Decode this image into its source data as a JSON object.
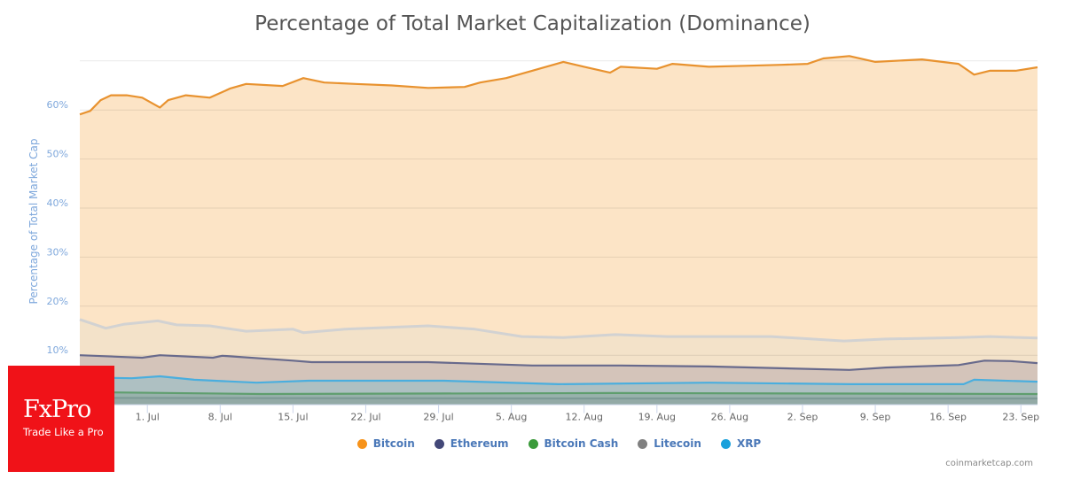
{
  "chart_data": {
    "type": "area",
    "title": "Percentage of Total Market Capitalization (Dominance)",
    "ylabel": "Percentage of Total Market Cap",
    "xlabel": "",
    "x_unit": "days since 25 Jun",
    "xlim": [
      -0.5,
      91.6
    ],
    "ylim": [
      0,
      71.5
    ],
    "gridlines": [
      10,
      20,
      30,
      40,
      50,
      60,
      70
    ],
    "y_tick_labels": [
      {
        "v": 10,
        "t": "10%"
      },
      {
        "v": 20,
        "t": "20%"
      },
      {
        "v": 30,
        "t": "30%"
      },
      {
        "v": 40,
        "t": "40%"
      },
      {
        "v": 50,
        "t": "50%"
      },
      {
        "v": 60,
        "t": "60%"
      }
    ],
    "x_ticks": [
      {
        "d": 6,
        "t": "1. Jul"
      },
      {
        "d": 13,
        "t": "8. Jul"
      },
      {
        "d": 20,
        "t": "15. Jul"
      },
      {
        "d": 27,
        "t": "22. Jul"
      },
      {
        "d": 34,
        "t": "29. Jul"
      },
      {
        "d": 41,
        "t": "5. Aug"
      },
      {
        "d": 48,
        "t": "12. Aug"
      },
      {
        "d": 55,
        "t": "19. Aug"
      },
      {
        "d": 62,
        "t": "26. Aug"
      },
      {
        "d": 69,
        "t": "2. Sep"
      },
      {
        "d": 76,
        "t": "9. Sep"
      },
      {
        "d": 83,
        "t": "16. Sep"
      },
      {
        "d": 90,
        "t": "23. Sep"
      }
    ],
    "series": [
      {
        "name": "Bitcoin",
        "color": "#f7931a",
        "line": "#e8922f",
        "fill": "#fce4c6",
        "points": [
          [
            -0.5,
            59.1
          ],
          [
            0.5,
            59.8
          ],
          [
            1.5,
            62
          ],
          [
            2.5,
            63
          ],
          [
            4,
            63
          ],
          [
            5.5,
            62.5
          ],
          [
            7.2,
            60.5
          ],
          [
            8,
            62
          ],
          [
            9.7,
            63
          ],
          [
            12,
            62.5
          ],
          [
            14,
            64.4
          ],
          [
            15.5,
            65.3
          ],
          [
            19,
            64.9
          ],
          [
            21,
            66.5
          ],
          [
            23,
            65.6
          ],
          [
            26,
            65.3
          ],
          [
            29.5,
            65
          ],
          [
            33,
            64.5
          ],
          [
            36.5,
            64.7
          ],
          [
            38,
            65.6
          ],
          [
            40.5,
            66.5
          ],
          [
            43,
            68
          ],
          [
            46,
            69.8
          ],
          [
            48,
            68.8
          ],
          [
            50.5,
            67.6
          ],
          [
            51.5,
            68.8
          ],
          [
            55,
            68.4
          ],
          [
            56.5,
            69.4
          ],
          [
            60,
            68.8
          ],
          [
            63.5,
            69
          ],
          [
            67,
            69.2
          ],
          [
            69.5,
            69.4
          ],
          [
            71,
            70.5
          ],
          [
            73.5,
            71
          ],
          [
            76,
            69.8
          ],
          [
            80.5,
            70.3
          ],
          [
            84,
            69.4
          ],
          [
            85.5,
            67.2
          ],
          [
            87,
            68
          ],
          [
            89.5,
            68
          ],
          [
            91.6,
            68.7
          ]
        ]
      },
      {
        "name": "",
        "color": "#d0d0d0",
        "line": "#d2d2d2",
        "fill": "#f3e2c9",
        "points": [
          [
            -0.5,
            17.3
          ],
          [
            2,
            15.5
          ],
          [
            3.7,
            16.3
          ],
          [
            7,
            17
          ],
          [
            8.8,
            16.2
          ],
          [
            12,
            16
          ],
          [
            15.5,
            14.9
          ],
          [
            20,
            15.3
          ],
          [
            21,
            14.6
          ],
          [
            25,
            15.3
          ],
          [
            33,
            16
          ],
          [
            37.5,
            15.3
          ],
          [
            42,
            13.8
          ],
          [
            46,
            13.6
          ],
          [
            51,
            14.2
          ],
          [
            56,
            13.8
          ],
          [
            66,
            13.8
          ],
          [
            73,
            12.9
          ],
          [
            77,
            13.3
          ],
          [
            84,
            13.6
          ],
          [
            87,
            13.8
          ],
          [
            91.6,
            13.5
          ]
        ]
      },
      {
        "name": "Ethereum",
        "color": "#434878",
        "line": "#686a8c",
        "fill": "#d4c4ba",
        "points": [
          [
            -0.5,
            10
          ],
          [
            5.5,
            9.5
          ],
          [
            7.2,
            10
          ],
          [
            12.3,
            9.5
          ],
          [
            13.2,
            9.9
          ],
          [
            20,
            8.9
          ],
          [
            21.8,
            8.6
          ],
          [
            26,
            8.6
          ],
          [
            33,
            8.6
          ],
          [
            43,
            7.9
          ],
          [
            46.5,
            7.9
          ],
          [
            51.5,
            7.9
          ],
          [
            60,
            7.7
          ],
          [
            73.5,
            7
          ],
          [
            77,
            7.5
          ],
          [
            84,
            8
          ],
          [
            86.5,
            8.9
          ],
          [
            89,
            8.8
          ],
          [
            91.6,
            8.4
          ]
        ]
      },
      {
        "name": "XRP",
        "color": "#1aa1dc",
        "line": "#4aaede",
        "fill": "#aec0c2",
        "points": [
          [
            -0.5,
            5.5
          ],
          [
            4.5,
            5.3
          ],
          [
            7.2,
            5.7
          ],
          [
            10.5,
            5
          ],
          [
            16.5,
            4.4
          ],
          [
            21.5,
            4.8
          ],
          [
            34.5,
            4.8
          ],
          [
            45.5,
            4.1
          ],
          [
            60,
            4.4
          ],
          [
            73.5,
            4.1
          ],
          [
            84.5,
            4.1
          ],
          [
            85.5,
            5
          ],
          [
            91.6,
            4.6
          ]
        ]
      },
      {
        "name": "Bitcoin Cash",
        "color": "#3a9a3a",
        "line": "#5f9e6e",
        "fill": "#98b2ac",
        "points": [
          [
            -0.5,
            2.5
          ],
          [
            17,
            2.1
          ],
          [
            51,
            2.3
          ],
          [
            91.6,
            2.1
          ]
        ]
      },
      {
        "name": "Litecoin",
        "color": "#808080",
        "line": "#7d9a96",
        "fill": "#93aaa6",
        "points": [
          [
            -0.5,
            1.3
          ],
          [
            45,
            1.2
          ],
          [
            91.6,
            1.2
          ]
        ]
      }
    ]
  },
  "legend": [
    {
      "name": "Bitcoin",
      "color": "#f7931a"
    },
    {
      "name": "Ethereum",
      "color": "#434878"
    },
    {
      "name": "Bitcoin Cash",
      "color": "#3a9a3a"
    },
    {
      "name": "Litecoin",
      "color": "#808080"
    },
    {
      "name": "XRP",
      "color": "#1aa1dc"
    }
  ],
  "credit": "coinmarketcap.com",
  "logo": {
    "brand": "FxPro",
    "tagline": "Trade Like a Pro"
  }
}
